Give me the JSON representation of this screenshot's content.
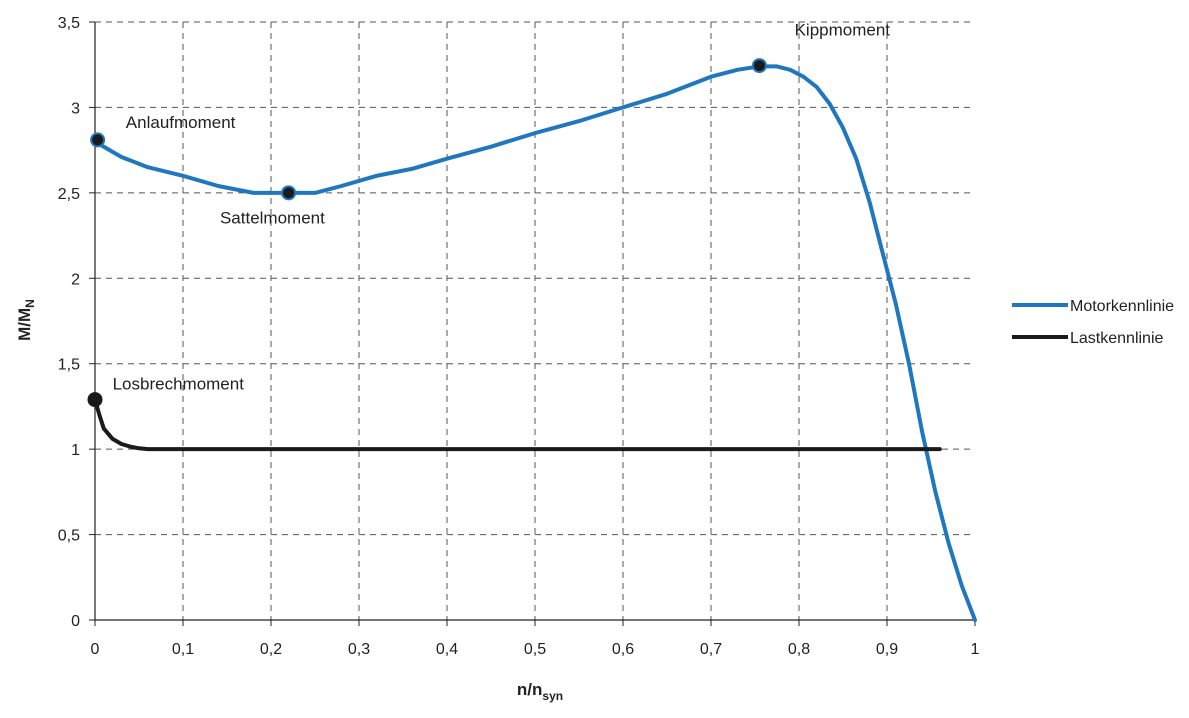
{
  "chart_data": {
    "type": "line",
    "title": "",
    "xlabel": {
      "main": "n/n",
      "sub": "syn"
    },
    "ylabel": {
      "main": "M/M",
      "sub": "N"
    },
    "xlim": [
      0,
      1
    ],
    "ylim": [
      0,
      3.5
    ],
    "grid": true,
    "grid_style": "dashed",
    "legend_position": "right",
    "x_ticks": [
      {
        "v": 0,
        "label": "0"
      },
      {
        "v": 0.1,
        "label": "0,1"
      },
      {
        "v": 0.2,
        "label": "0,2"
      },
      {
        "v": 0.3,
        "label": "0,3"
      },
      {
        "v": 0.4,
        "label": "0,4"
      },
      {
        "v": 0.5,
        "label": "0,5"
      },
      {
        "v": 0.6,
        "label": "0,6"
      },
      {
        "v": 0.7,
        "label": "0,7"
      },
      {
        "v": 0.8,
        "label": "0,8"
      },
      {
        "v": 0.9,
        "label": "0,9"
      },
      {
        "v": 1,
        "label": "1"
      }
    ],
    "y_ticks": [
      {
        "v": 0,
        "label": "0"
      },
      {
        "v": 0.5,
        "label": "0,5"
      },
      {
        "v": 1,
        "label": "1"
      },
      {
        "v": 1.5,
        "label": "1,5"
      },
      {
        "v": 2,
        "label": "2"
      },
      {
        "v": 2.5,
        "label": "2,5"
      },
      {
        "v": 3,
        "label": "3"
      },
      {
        "v": 3.5,
        "label": "3,5"
      }
    ],
    "series": [
      {
        "name": "Motorkennlinie",
        "color": "#1f77c0",
        "x": [
          0,
          0.03,
          0.06,
          0.1,
          0.14,
          0.18,
          0.22,
          0.25,
          0.28,
          0.32,
          0.36,
          0.4,
          0.45,
          0.5,
          0.55,
          0.6,
          0.65,
          0.7,
          0.73,
          0.755,
          0.775,
          0.79,
          0.805,
          0.82,
          0.835,
          0.85,
          0.865,
          0.88,
          0.895,
          0.91,
          0.925,
          0.94,
          0.955,
          0.97,
          0.985,
          1
        ],
        "y": [
          2.8,
          2.71,
          2.65,
          2.6,
          2.54,
          2.5,
          2.5,
          2.5,
          2.54,
          2.6,
          2.64,
          2.7,
          2.77,
          2.85,
          2.92,
          3.0,
          3.08,
          3.18,
          3.22,
          3.24,
          3.24,
          3.22,
          3.18,
          3.12,
          3.02,
          2.88,
          2.7,
          2.45,
          2.15,
          1.85,
          1.5,
          1.1,
          0.75,
          0.45,
          0.2,
          0
        ]
      },
      {
        "name": "Lastkennlinie",
        "color": "#1a1a1a",
        "x": [
          0,
          0.005,
          0.01,
          0.02,
          0.03,
          0.04,
          0.05,
          0.06,
          0.08,
          0.96
        ],
        "y": [
          1.29,
          1.2,
          1.12,
          1.06,
          1.03,
          1.015,
          1.005,
          1.0,
          1.0,
          1.0
        ]
      }
    ],
    "markers": [
      {
        "x": 0.003,
        "y": 2.81,
        "color": "#1f77c0"
      },
      {
        "x": 0.22,
        "y": 2.5,
        "color": "#1f77c0"
      },
      {
        "x": 0.755,
        "y": 3.245,
        "color": "#1f77c0"
      },
      {
        "x": 0.0,
        "y": 1.29,
        "color": "#1a1a1a"
      }
    ],
    "annotations": [
      {
        "text": "Anlaufmoment",
        "x": 0.035,
        "y": 2.88
      },
      {
        "text": "Sattelmoment",
        "x": 0.142,
        "y": 2.32
      },
      {
        "text": "Kippmoment",
        "x": 0.795,
        "y": 3.42
      },
      {
        "text": "Losbrechmoment",
        "x": 0.02,
        "y": 1.35
      }
    ]
  }
}
